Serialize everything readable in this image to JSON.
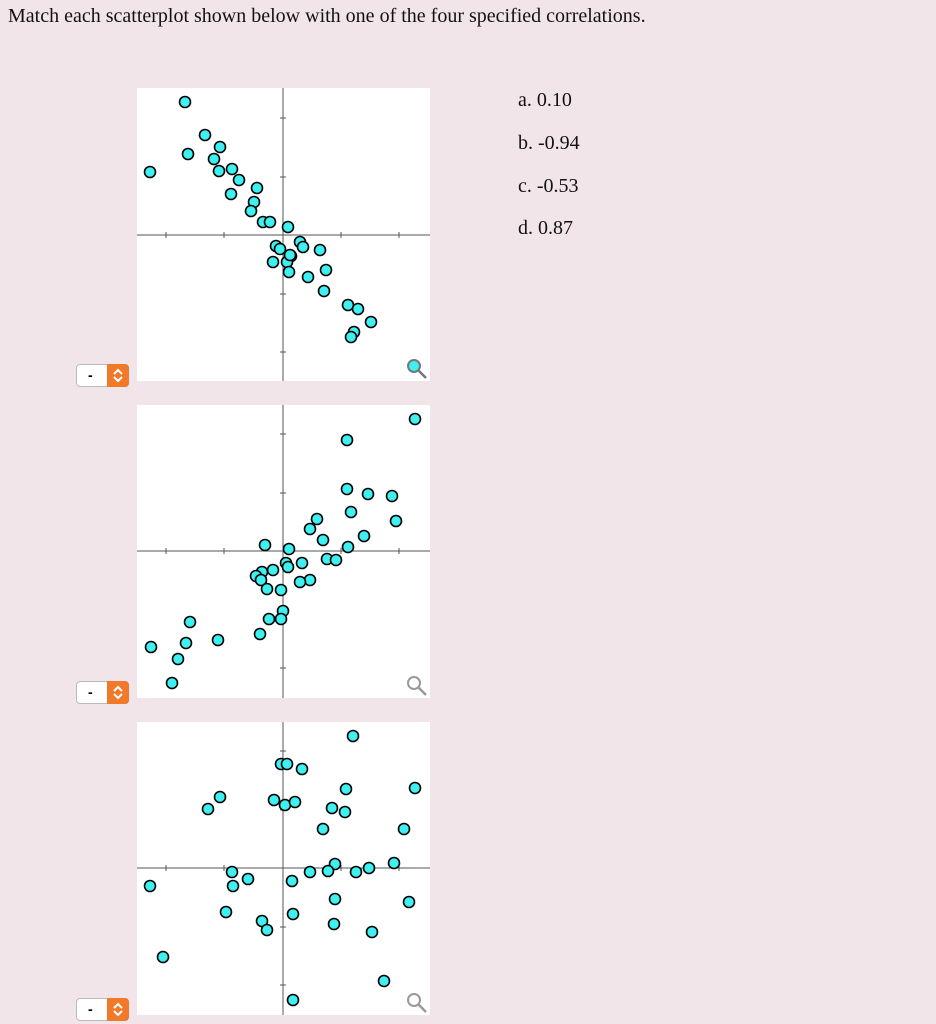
{
  "question": "Match each scatterplot shown below with one of the four specified correlations.",
  "options": [
    "a. 0.10",
    "b. -0.94",
    "c. -0.53",
    "d. 0.87"
  ],
  "selects": [
    "-",
    "-",
    "-"
  ]
}
